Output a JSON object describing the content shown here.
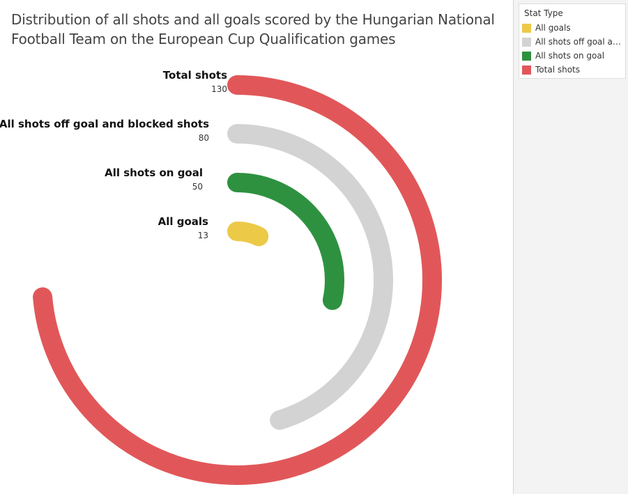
{
  "chart_data": {
    "type": "radial-bar",
    "title": "Distribution of all shots and all goals scored by the Hungarian National Football Team on the European Cup Qualification games",
    "max_value": 130,
    "series": [
      {
        "name": "Total shots",
        "value": 130,
        "color": "#e15759"
      },
      {
        "name": "All shots off goal and blocked shots",
        "value": 80,
        "color": "#d3d3d3"
      },
      {
        "name": "All shots on goal",
        "value": 50,
        "color": "#2e9140"
      },
      {
        "name": "All goals",
        "value": 13,
        "color": "#edc948"
      }
    ],
    "legend": {
      "title": "Stat Type",
      "placement": "top-right",
      "items": [
        {
          "label": "All goals",
          "color": "#edc948"
        },
        {
          "label": "All shots off goal and..",
          "color": "#d3d3d3"
        },
        {
          "label": "All shots on goal",
          "color": "#2e9140"
        },
        {
          "label": "Total shots",
          "color": "#e15759"
        }
      ]
    }
  }
}
